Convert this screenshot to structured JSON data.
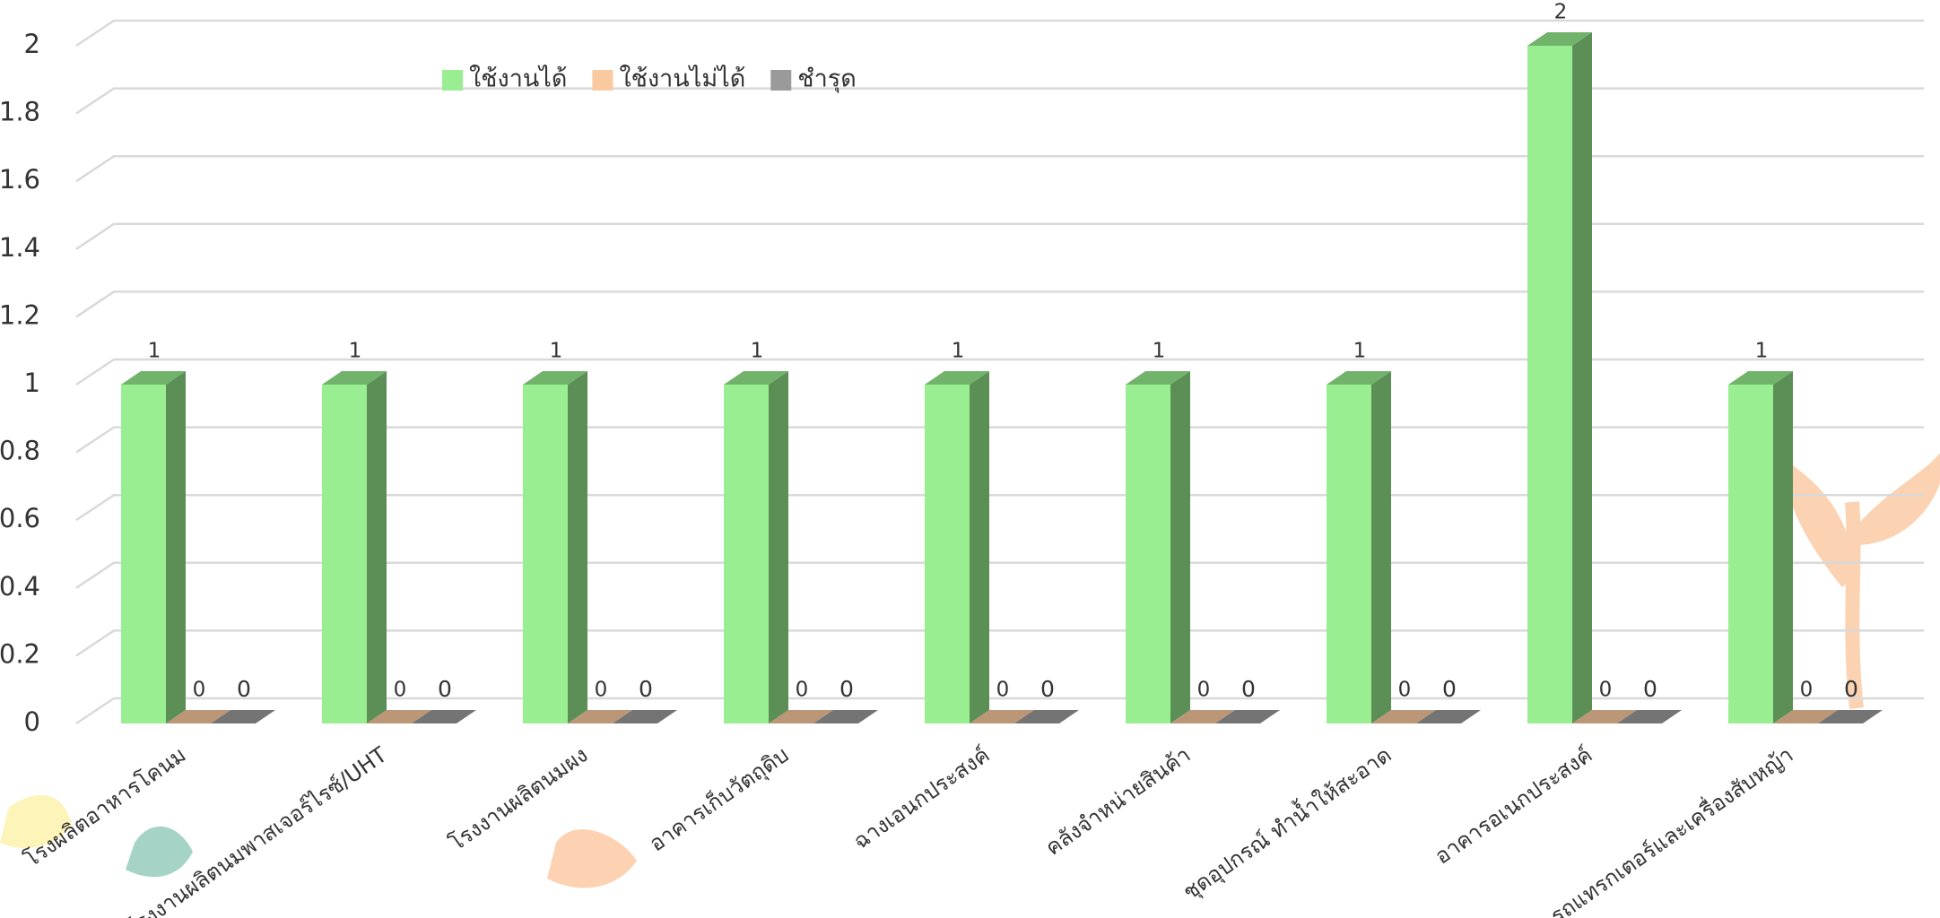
{
  "chart_data": {
    "type": "bar3d",
    "categories": [
      "โรงผลิตอาหารโคนม",
      "โรงงานผลิตนมพาสเจอร์ไรซ์/UHT",
      "โรงงานผลิตนมผง",
      "อาคารเก็บวัตถุดิบ",
      "ฉางเอนกประสงค์",
      "คลังจำหน่ายสินค้า",
      "ชุดอุปกรณ์ ทำน้ำให้สะอาด",
      "อาคารอเนกประสงค์",
      "รถแทรกเตอร์และเครื่องสับหญ้า"
    ],
    "series": [
      {
        "name": "ใช้งานได้",
        "color": "#98ee90",
        "values": [
          1,
          1,
          1,
          1,
          1,
          1,
          1,
          2,
          1
        ]
      },
      {
        "name": "ใช้งานไม่ได้",
        "color": "#f9c9a0",
        "values": [
          0,
          0,
          0,
          0,
          0,
          0,
          0,
          0,
          0
        ]
      },
      {
        "name": "ชำรุด",
        "color": "#9a9a9a",
        "values": [
          0,
          0,
          0,
          0,
          0,
          0,
          0,
          0,
          0
        ]
      }
    ],
    "ylim": [
      0,
      2
    ],
    "yticks": [
      0,
      0.2,
      0.4,
      0.6,
      0.8,
      1,
      1.2,
      1.4,
      1.6,
      1.8,
      2
    ],
    "grid": true,
    "legend": "top"
  }
}
